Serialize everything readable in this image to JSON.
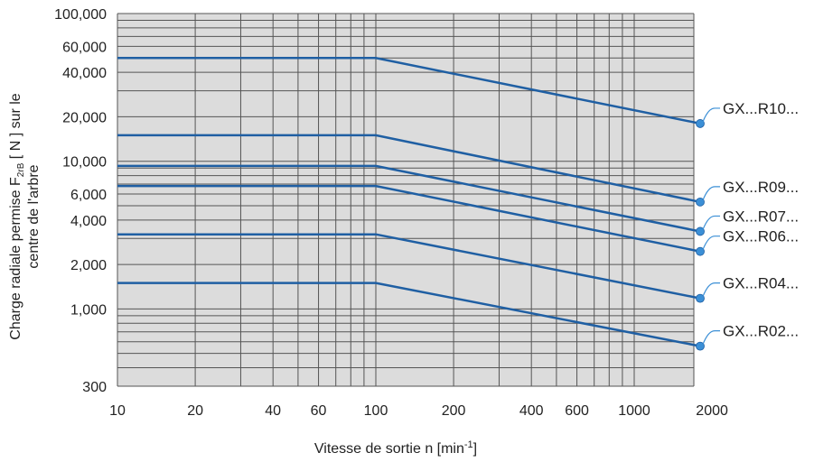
{
  "chart_data": {
    "type": "line",
    "xscale": "log",
    "yscale": "log",
    "xlim": [
      10,
      1800
    ],
    "ylim": [
      300,
      100000
    ],
    "grid": true,
    "xticks": [
      {
        "value": 10,
        "label": "10"
      },
      {
        "value": 20,
        "label": "20"
      },
      {
        "value": 40,
        "label": "40"
      },
      {
        "value": 60,
        "label": "60"
      },
      {
        "value": 100,
        "label": "100"
      },
      {
        "value": 200,
        "label": "200"
      },
      {
        "value": 400,
        "label": "400"
      },
      {
        "value": 600,
        "label": "600"
      },
      {
        "value": 1000,
        "label": "1000"
      },
      {
        "value": 2000,
        "label": "2000"
      }
    ],
    "yticks": [
      {
        "value": 300,
        "label": "300"
      },
      {
        "value": 1000,
        "label": "1,000"
      },
      {
        "value": 2000,
        "label": "2,000"
      },
      {
        "value": 4000,
        "label": "4,000"
      },
      {
        "value": 6000,
        "label": "6,000"
      },
      {
        "value": 10000,
        "label": "10,000"
      },
      {
        "value": 20000,
        "label": "20,000"
      },
      {
        "value": 40000,
        "label": "40,000"
      },
      {
        "value": 60000,
        "label": "60,000"
      },
      {
        "value": 100000,
        "label": "100,000"
      }
    ],
    "xlabel": {
      "pre": "Vitesse de sortie n [min",
      "sup": "-1",
      "post": "]"
    },
    "ylabel": {
      "line1_pre": "Charge radiale permise F",
      "line1_sub": "2rB",
      "line1_post": " [ N ] sur le",
      "line2": "centre de l'arbre"
    },
    "series": [
      {
        "name": "GX...R10...",
        "x": [
          10,
          100,
          1800
        ],
        "y": [
          50000,
          50000,
          18000
        ]
      },
      {
        "name": "GX...R09...",
        "x": [
          10,
          100,
          1800
        ],
        "y": [
          15000,
          15000,
          5300
        ]
      },
      {
        "name": "GX...R07...",
        "x": [
          10,
          100,
          1800
        ],
        "y": [
          9300,
          9300,
          3350
        ]
      },
      {
        "name": "GX...R06...",
        "x": [
          10,
          100,
          1800
        ],
        "y": [
          6800,
          6800,
          2450
        ]
      },
      {
        "name": "GX...R04...",
        "x": [
          10,
          100,
          1800
        ],
        "y": [
          3200,
          3200,
          1180
        ]
      },
      {
        "name": "GX...R02...",
        "x": [
          10,
          100,
          1800
        ],
        "y": [
          1500,
          1500,
          560
        ]
      }
    ]
  },
  "colors": {
    "plot_background": "#dcdcdc",
    "grid": "#555555",
    "line": "#1f5fa3",
    "marker": "#3b8fd6",
    "text": "#222222"
  }
}
